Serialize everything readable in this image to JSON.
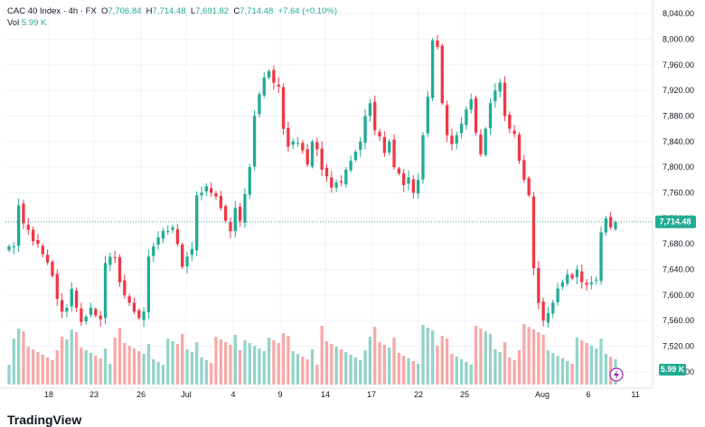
{
  "header": {
    "symbol": "CAC 40 Index · 4h · FX",
    "o_label": "O",
    "o_value": "7,706.84",
    "h_label": "H",
    "h_value": "7,714.48",
    "l_label": "L",
    "l_value": "7,691.82",
    "c_label": "C",
    "c_value": "7,714.48",
    "change": "+7.64 (+0.10%)"
  },
  "volume": {
    "label": "Vol",
    "value": "5.99 K"
  },
  "logo": "TradingView",
  "colors": {
    "up": "#22ab94",
    "down": "#f23645",
    "vol_up": "#94d3c9",
    "vol_down": "#f7a9a7",
    "price_line": "#22ab94"
  },
  "chart_data": {
    "type": "candlestick",
    "y_axis": {
      "ticks": [
        "8,040.00",
        "8,000.00",
        "7,960.00",
        "7,920.00",
        "7,880.00",
        "7,840.00",
        "7,800.00",
        "7,760.00",
        "7,720.00",
        "7,680.00",
        "7,640.00",
        "7,600.00",
        "7,560.00",
        "7,520.00",
        "7,480.00"
      ],
      "min": 7460,
      "max": 8050
    },
    "x_axis": {
      "ticks": [
        "18",
        "23",
        "26",
        "Jul",
        "4",
        "9",
        "14",
        "17",
        "22",
        "25",
        "Aug",
        "6",
        "11"
      ]
    },
    "last_price": 7714.48,
    "last_price_label": "7,714.48",
    "volume_label": "5.99 K",
    "closes": [
      7676,
      7676,
      7740,
      7712,
      7702,
      7684,
      7680,
      7664,
      7651,
      7630,
      7594,
      7574,
      7580,
      7610,
      7580,
      7558,
      7566,
      7580,
      7568,
      7562,
      7650,
      7660,
      7658,
      7620,
      7600,
      7588,
      7574,
      7564,
      7574,
      7660,
      7676,
      7690,
      7700,
      7700,
      7706,
      7680,
      7644,
      7660,
      7672,
      7756,
      7760,
      7770,
      7760,
      7754,
      7736,
      7716,
      7700,
      7736,
      7716,
      7758,
      7800,
      7880,
      7914,
      7940,
      7950,
      7932,
      7926,
      7860,
      7832,
      7840,
      7838,
      7826,
      7804,
      7840,
      7828,
      7796,
      7786,
      7768,
      7776,
      7776,
      7796,
      7810,
      7824,
      7840,
      7880,
      7900,
      7858,
      7848,
      7822,
      7840,
      7800,
      7790,
      7772,
      7784,
      7760,
      7780,
      7850,
      7910,
      7998,
      7988,
      7900,
      7850,
      7836,
      7850,
      7868,
      7890,
      7906,
      7854,
      7820,
      7860,
      7900,
      7920,
      7932,
      7880,
      7860,
      7852,
      7810,
      7780,
      7756,
      7642,
      7588,
      7560,
      7572,
      7588,
      7610,
      7620,
      7632,
      7626,
      7640,
      7620,
      7616,
      7620,
      7624,
      7698,
      7720,
      7706,
      7714
    ]
  }
}
